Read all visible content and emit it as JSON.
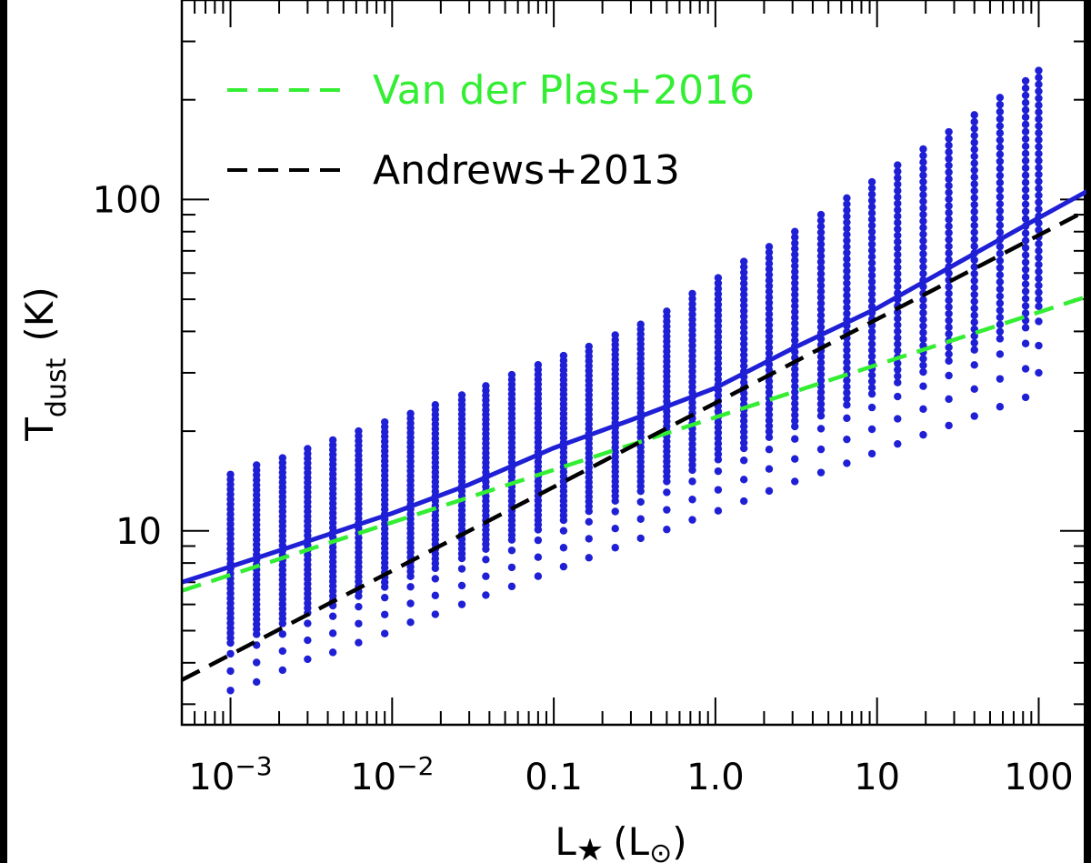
{
  "chart_data": {
    "type": "scatter",
    "title": "",
    "xlabel": "L★ (L⊙)",
    "ylabel": "T dust (K)",
    "xscale": "log",
    "yscale": "log",
    "xlim": [
      0.0005,
      200
    ],
    "ylim": [
      2.6,
      400
    ],
    "grid": false,
    "legend_position": "top-left",
    "x_tick_labels": [
      {
        "value": 0.001,
        "base": "10",
        "exp": "−3"
      },
      {
        "value": 0.01,
        "base": "10",
        "exp": "−2"
      },
      {
        "value": 0.1,
        "base": "0.1",
        "exp": ""
      },
      {
        "value": 1,
        "base": "1.0",
        "exp": ""
      },
      {
        "value": 10,
        "base": "10",
        "exp": ""
      },
      {
        "value": 100,
        "base": "100",
        "exp": ""
      }
    ],
    "y_tick_labels": [
      {
        "value": 10,
        "label": "10"
      },
      {
        "value": 100,
        "label": "100"
      }
    ],
    "colors": {
      "scatter": "#1f1fd6",
      "fit": "#1f1fd6",
      "vanderplas": "#33ee33",
      "andrews": "#000000"
    },
    "scatter": {
      "name": "",
      "columns": [
        {
          "x": 0.001,
          "ymin": 3.3,
          "ymax": 14.8
        },
        {
          "x": 0.00145,
          "ymin": 3.5,
          "ymax": 15.8
        },
        {
          "x": 0.0021,
          "ymin": 3.8,
          "ymax": 16.6
        },
        {
          "x": 0.003,
          "ymin": 4.1,
          "ymax": 17.7
        },
        {
          "x": 0.0043,
          "ymin": 4.3,
          "ymax": 18.8
        },
        {
          "x": 0.0062,
          "ymin": 4.6,
          "ymax": 20.0
        },
        {
          "x": 0.009,
          "ymin": 4.9,
          "ymax": 21.3
        },
        {
          "x": 0.013,
          "ymin": 5.3,
          "ymax": 22.6
        },
        {
          "x": 0.0185,
          "ymin": 5.6,
          "ymax": 24.0
        },
        {
          "x": 0.027,
          "ymin": 6.0,
          "ymax": 25.7
        },
        {
          "x": 0.038,
          "ymin": 6.4,
          "ymax": 27.4
        },
        {
          "x": 0.055,
          "ymin": 6.8,
          "ymax": 29.6
        },
        {
          "x": 0.08,
          "ymin": 7.3,
          "ymax": 31.7
        },
        {
          "x": 0.115,
          "ymin": 7.8,
          "ymax": 33.8
        },
        {
          "x": 0.165,
          "ymin": 8.3,
          "ymax": 36.0
        },
        {
          "x": 0.24,
          "ymin": 8.9,
          "ymax": 39.0
        },
        {
          "x": 0.345,
          "ymin": 9.5,
          "ymax": 42.0
        },
        {
          "x": 0.5,
          "ymin": 10.1,
          "ymax": 46.0
        },
        {
          "x": 0.72,
          "ymin": 10.8,
          "ymax": 52.0
        },
        {
          "x": 1.04,
          "ymin": 11.5,
          "ymax": 58.0
        },
        {
          "x": 1.5,
          "ymin": 12.3,
          "ymax": 65.0
        },
        {
          "x": 2.15,
          "ymin": 13.2,
          "ymax": 72.0
        },
        {
          "x": 3.1,
          "ymin": 14.1,
          "ymax": 80.0
        },
        {
          "x": 4.5,
          "ymin": 15.0,
          "ymax": 90.0
        },
        {
          "x": 6.5,
          "ymin": 16.0,
          "ymax": 101.0
        },
        {
          "x": 9.3,
          "ymin": 17.1,
          "ymax": 113.0
        },
        {
          "x": 13.4,
          "ymin": 18.3,
          "ymax": 127.0
        },
        {
          "x": 19.3,
          "ymin": 19.5,
          "ymax": 142.0
        },
        {
          "x": 27.8,
          "ymin": 20.8,
          "ymax": 160.0
        },
        {
          "x": 40,
          "ymin": 22.2,
          "ymax": 180.0
        },
        {
          "x": 57.6,
          "ymin": 23.7,
          "ymax": 203.0
        },
        {
          "x": 83,
          "ymin": 25.3,
          "ymax": 228.0
        },
        {
          "x": 100,
          "ymin": 30.0,
          "ymax": 245.0
        }
      ]
    },
    "series": [
      {
        "name": "",
        "style": "solid",
        "x": [
          0.0005,
          0.001,
          0.003,
          0.01,
          0.03,
          0.1,
          0.3,
          1,
          3,
          10,
          30,
          100,
          200
        ],
        "y": [
          7.0,
          7.8,
          9.3,
          11.3,
          13.8,
          17.8,
          21.6,
          27.0,
          35.5,
          47.0,
          63.5,
          88.0,
          106.0
        ]
      },
      {
        "name": "Van der Plas+2016",
        "style": "dashed",
        "x": [
          0.0005,
          200
        ],
        "y": [
          6.6,
          51.0
        ]
      },
      {
        "name": "Andrews+2013",
        "style": "dashed",
        "x": [
          0.0005,
          200
        ],
        "y": [
          3.55,
          93.0
        ]
      }
    ]
  }
}
